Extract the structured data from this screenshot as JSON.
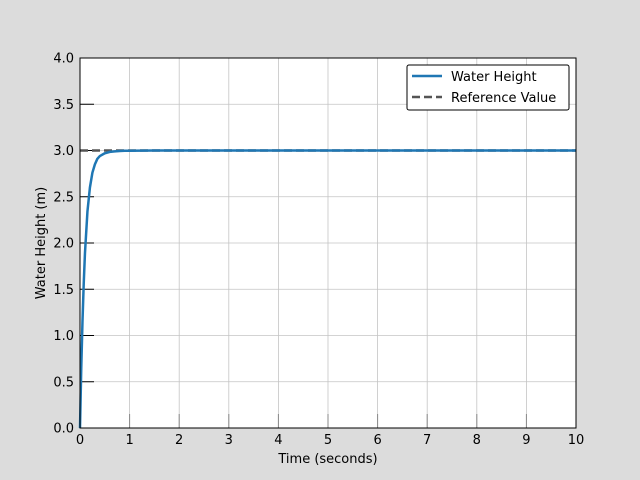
{
  "chart_data": {
    "type": "line",
    "xlabel": "Time (seconds)",
    "ylabel": "Water Height (m)",
    "xlim": [
      0,
      10
    ],
    "ylim": [
      0,
      4.0
    ],
    "x_ticks": [
      "0",
      "1",
      "2",
      "3",
      "4",
      "5",
      "6",
      "7",
      "8",
      "9",
      "10"
    ],
    "y_ticks": [
      "0.0",
      "0.5",
      "1.0",
      "1.5",
      "2.0",
      "2.5",
      "3.0",
      "3.5",
      "4.0"
    ],
    "grid": true,
    "legend_position": "top-right",
    "series": [
      {
        "name": "Water Height",
        "style": "solid",
        "color": "#1f77b4",
        "x": [
          0,
          0.025,
          0.05,
          0.075,
          0.1,
          0.15,
          0.2,
          0.25,
          0.3,
          0.35,
          0.4,
          0.5,
          0.6,
          0.7,
          0.8,
          0.9,
          1.0,
          1.25,
          1.5,
          2.0,
          3.0,
          4.0,
          5.0,
          6.0,
          7.0,
          8.0,
          9.0,
          10.0
        ],
        "y": [
          0,
          0.64,
          1.15,
          1.56,
          1.89,
          2.34,
          2.6,
          2.76,
          2.85,
          2.91,
          2.94,
          2.97,
          2.985,
          2.99,
          2.995,
          2.997,
          2.998,
          2.999,
          3.0,
          3.0,
          3.0,
          3.0,
          3.0,
          3.0,
          3.0,
          3.0,
          3.0,
          3.0
        ]
      },
      {
        "name": "Reference Value",
        "style": "dashed",
        "color": "#555555",
        "x": [
          0,
          10
        ],
        "y": [
          3.0,
          3.0
        ]
      }
    ]
  }
}
